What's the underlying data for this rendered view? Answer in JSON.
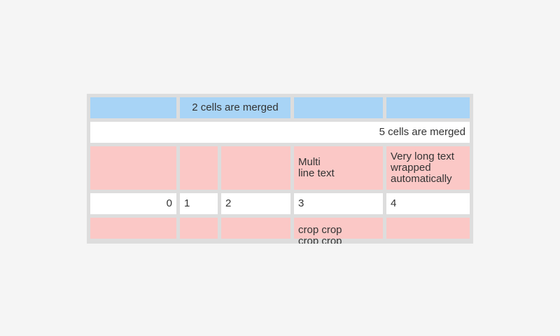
{
  "colors": {
    "page_bg": "#f5f5f5",
    "table_bg": "#dddddd",
    "row_blue": "#a8d4f6",
    "row_pink": "#fbc8c6",
    "row_white": "#ffffff",
    "text": "#333333"
  },
  "table": {
    "rows": [
      {
        "name": "blue header row",
        "cells": [
          {
            "text": ""
          },
          {
            "text": "2 cells are merged"
          },
          {
            "text": ""
          },
          {
            "text": ""
          }
        ]
      },
      {
        "name": "full-width merged row",
        "cells": [
          {
            "text": "5 cells are merged"
          }
        ]
      },
      {
        "name": "pink multiline row",
        "cells": [
          {
            "text": ""
          },
          {
            "text": ""
          },
          {
            "text": ""
          },
          {
            "text": "Multi\nline text"
          },
          {
            "text": "Very long text wrapped automatically"
          }
        ]
      },
      {
        "name": "number row",
        "cells": [
          {
            "text": "0"
          },
          {
            "text": "1"
          },
          {
            "text": "2"
          },
          {
            "text": "3"
          },
          {
            "text": "4"
          }
        ]
      },
      {
        "name": "cropped pink row",
        "cells": [
          {
            "text": ""
          },
          {
            "text": ""
          },
          {
            "text": ""
          },
          {
            "text": "crop crop crop crop"
          },
          {
            "text": ""
          }
        ]
      }
    ]
  }
}
